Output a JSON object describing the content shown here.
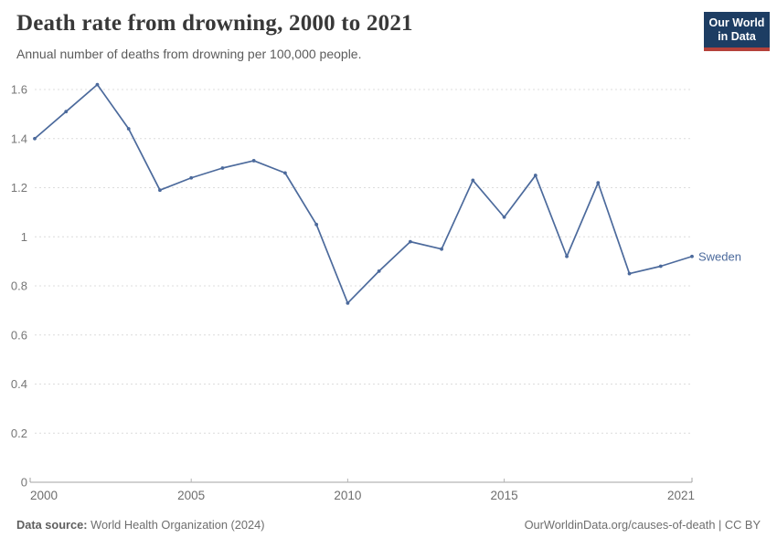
{
  "header": {
    "title": "Death rate from drowning, 2000 to 2021",
    "subtitle": "Annual number of deaths from drowning per 100,000 people."
  },
  "logo": {
    "line1": "Our World",
    "line2": "in Data",
    "bg_color": "#1d3d63",
    "bar_color": "#b5413a"
  },
  "chart_data": {
    "type": "line",
    "title": "Death rate from drowning, 2000 to 2021",
    "subtitle": "Annual number of deaths from drowning per 100,000 people.",
    "x": [
      2000,
      2001,
      2002,
      2003,
      2004,
      2005,
      2006,
      2007,
      2008,
      2009,
      2010,
      2011,
      2012,
      2013,
      2014,
      2015,
      2016,
      2017,
      2018,
      2019,
      2020,
      2021
    ],
    "series": [
      {
        "name": "Sweden",
        "color": "#4c6a9c",
        "values": [
          1.4,
          1.51,
          1.62,
          1.44,
          1.19,
          1.24,
          1.28,
          1.31,
          1.26,
          1.05,
          0.73,
          0.86,
          0.98,
          0.95,
          1.23,
          1.08,
          1.25,
          0.92,
          1.22,
          0.85,
          0.88,
          0.92
        ]
      }
    ],
    "xlabel": "",
    "ylabel": "",
    "ylim": [
      0,
      1.6
    ],
    "yticks": [
      0,
      0.2,
      0.4,
      0.6,
      0.8,
      1,
      1.2,
      1.4,
      1.6
    ],
    "xticks": [
      2000,
      2005,
      2010,
      2015,
      2021
    ],
    "grid": "horizontal-dashed",
    "legend_position": "end-of-line-label"
  },
  "footer": {
    "datasource_label": "Data source:",
    "datasource_value": "World Health Organization (2024)",
    "link": "OurWorldinData.org/causes-of-death",
    "license": " | CC BY"
  }
}
